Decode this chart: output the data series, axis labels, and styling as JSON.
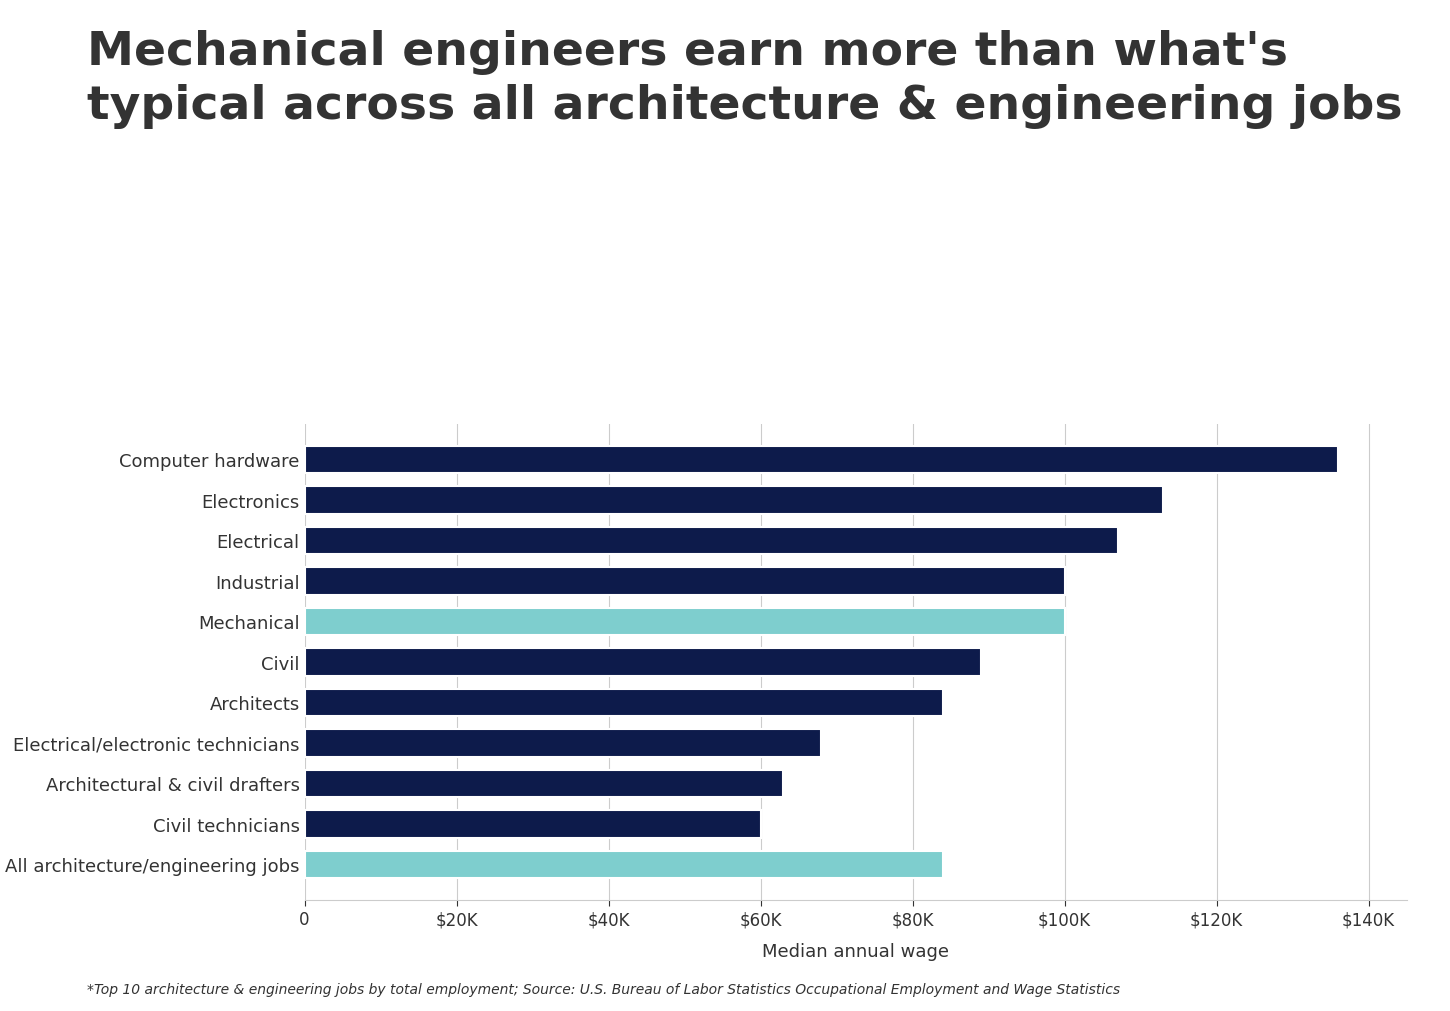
{
  "title_line1": "Mechanical engineers earn more than what's",
  "title_line2": "typical across all architecture & engineering jobs",
  "categories": [
    "Computer hardware",
    "Electronics",
    "Electrical",
    "Industrial",
    "Mechanical",
    "Civil",
    "Architects",
    "Electrical/electronic technicians",
    "Architectural & civil drafters",
    "Civil technicians",
    "All architecture/engineering jobs"
  ],
  "values": [
    136000,
    113000,
    107000,
    100000,
    100000,
    89000,
    84000,
    68000,
    63000,
    60000,
    84000
  ],
  "bar_colors": [
    "#0d1b4b",
    "#0d1b4b",
    "#0d1b4b",
    "#0d1b4b",
    "#7ecece",
    "#0d1b4b",
    "#0d1b4b",
    "#0d1b4b",
    "#0d1b4b",
    "#0d1b4b",
    "#7ecece"
  ],
  "xlabel": "Median annual wage",
  "xlim": [
    0,
    145000
  ],
  "xticks": [
    0,
    20000,
    40000,
    60000,
    80000,
    100000,
    120000,
    140000
  ],
  "xtick_labels": [
    "0",
    "$20K",
    "$40K",
    "$60K",
    "$80K",
    "$100K",
    "$120K",
    "$140K"
  ],
  "footnote": "*Top 10 architecture & engineering jobs by total employment; Source: U.S. Bureau of Labor Statistics Occupational Employment and Wage Statistics",
  "title_fontsize": 34,
  "label_fontsize": 13,
  "tick_fontsize": 12,
  "footnote_fontsize": 10,
  "background_color": "#ffffff",
  "bar_edge_color": "#ffffff",
  "text_color": "#333333",
  "grid_color": "#cccccc"
}
